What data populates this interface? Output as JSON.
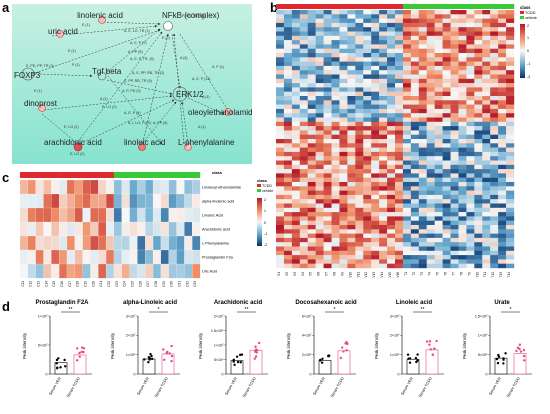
{
  "panels": {
    "a": "a",
    "b": "b",
    "c": "c",
    "d": "d"
  },
  "network": {
    "nodes": [
      "linolenic acid",
      "NFkB (complex)",
      "uric acid",
      "FOXP3",
      "Tgf beta",
      "ERK1/2",
      "dinoprost",
      "oleoylethanolamide",
      "arachidonic acid",
      "linoleic acid",
      "L-phenylalanine"
    ],
    "edges": [
      "E (1)",
      "P, PR, TR (60)",
      "A, E, LO, TR (2)",
      "E (2)",
      "A, E, P (7)",
      "A, PP (5)",
      "A, E, P, TR, (5)",
      "E (1)",
      "P (1)",
      "E, PD, PP, TR (3)",
      "A (4)",
      "A, E, PP, RB, TR (2)",
      "E, PP, RB, TR (9)",
      "A, E, P (12)",
      "A, P (1)",
      "E (1)",
      "A, P, PD (2)",
      "A (1)",
      "E, LO (2)",
      "A, I, LO, P, PD, A, PP (5)",
      "A, E, P (4)",
      "E, LO (2)",
      "E, LO (2)",
      "A (1)",
      "A (1)"
    ]
  },
  "heatmap_b": {
    "legend_title": "class",
    "legend_items": [
      "TCDD",
      "vehicle"
    ],
    "scale_ticks": [
      "2",
      "1",
      "0",
      "-1",
      "-2"
    ],
    "col_labels": [
      "V1",
      "V2",
      "V3",
      "V4",
      "V5",
      "V6",
      "V7",
      "V8",
      "V9",
      "V10",
      "V11",
      "V12",
      "V13",
      "V14",
      "V15",
      "V16",
      "T1",
      "T2",
      "T3",
      "T4",
      "T5",
      "T6",
      "T7",
      "T8",
      "T9",
      "T10",
      "T11",
      "T12",
      "T13",
      "T14"
    ]
  },
  "heatmap_c": {
    "class_label": "class",
    "legend_title": "class",
    "legend_items": [
      "TCDD",
      "vehicle"
    ],
    "scale_ticks": [
      "2",
      "1",
      "0",
      "-1",
      "-2"
    ],
    "row_labels": [
      "Linoleoyl-ethanolamide",
      "alpha-linolenic acid",
      "Linoleic Acid",
      "Arachidonic acid",
      "L-Phenylalanine",
      "Prostaglandin F2a",
      "Uric Acid"
    ],
    "col_labels": [
      "C11",
      "C12",
      "C13",
      "C14",
      "C15",
      "C16",
      "C17",
      "C18",
      "C19",
      "C20",
      "C21",
      "C22",
      "C23",
      "C24",
      "C25",
      "C26",
      "C27",
      "C28",
      "C29",
      "C30",
      "C31",
      "C32",
      "C33"
    ]
  },
  "scatter_d": [
    {
      "title": "Prostaglandin F2A",
      "ylabel": "Peak intensity",
      "yticks": [
        "0",
        "5×10⁵",
        "1×10⁶"
      ],
      "sig": "**",
      "groups": [
        "Serum VEH",
        "Serum TCDD"
      ]
    },
    {
      "title": "alpha-Linoleic acid",
      "ylabel": "Peak intensity",
      "yticks": [
        "0",
        "1×10⁵",
        "2×10⁵",
        "3×10⁵"
      ],
      "sig": "*",
      "groups": [
        "Serum VEH",
        "Serum TCDD"
      ]
    },
    {
      "title": "Arachidonic acid",
      "ylabel": "Peak intensity",
      "yticks": [
        "0",
        "5×10⁴",
        "1×10⁵",
        "1.5×10⁵",
        "2×10⁵"
      ],
      "sig": "**",
      "groups": [
        "Serum VEH",
        "Serum TCDD"
      ]
    },
    {
      "title": "Docosahexanoic acid",
      "ylabel": "Peak intensity",
      "yticks": [
        "0",
        "2×10⁵",
        "4×10⁵",
        "6×10⁵"
      ],
      "sig": "*",
      "groups": [
        "Serum VEH",
        "Serum TCDD"
      ]
    },
    {
      "title": "Linoleic acid",
      "ylabel": "Peak intensity",
      "yticks": [
        "0",
        "1×10⁶",
        "2×10⁶",
        "3×10⁶"
      ],
      "sig": "**",
      "groups": [
        "Serum VEH",
        "Serum TCDD"
      ]
    },
    {
      "title": "Urate",
      "ylabel": "Peak intensity",
      "yticks": [
        "0",
        "5×10⁵",
        "1×10⁶",
        "1.5×10⁶"
      ],
      "sig": "*",
      "groups": [
        "Serum VEH",
        "Serum TCDD"
      ]
    }
  ]
}
